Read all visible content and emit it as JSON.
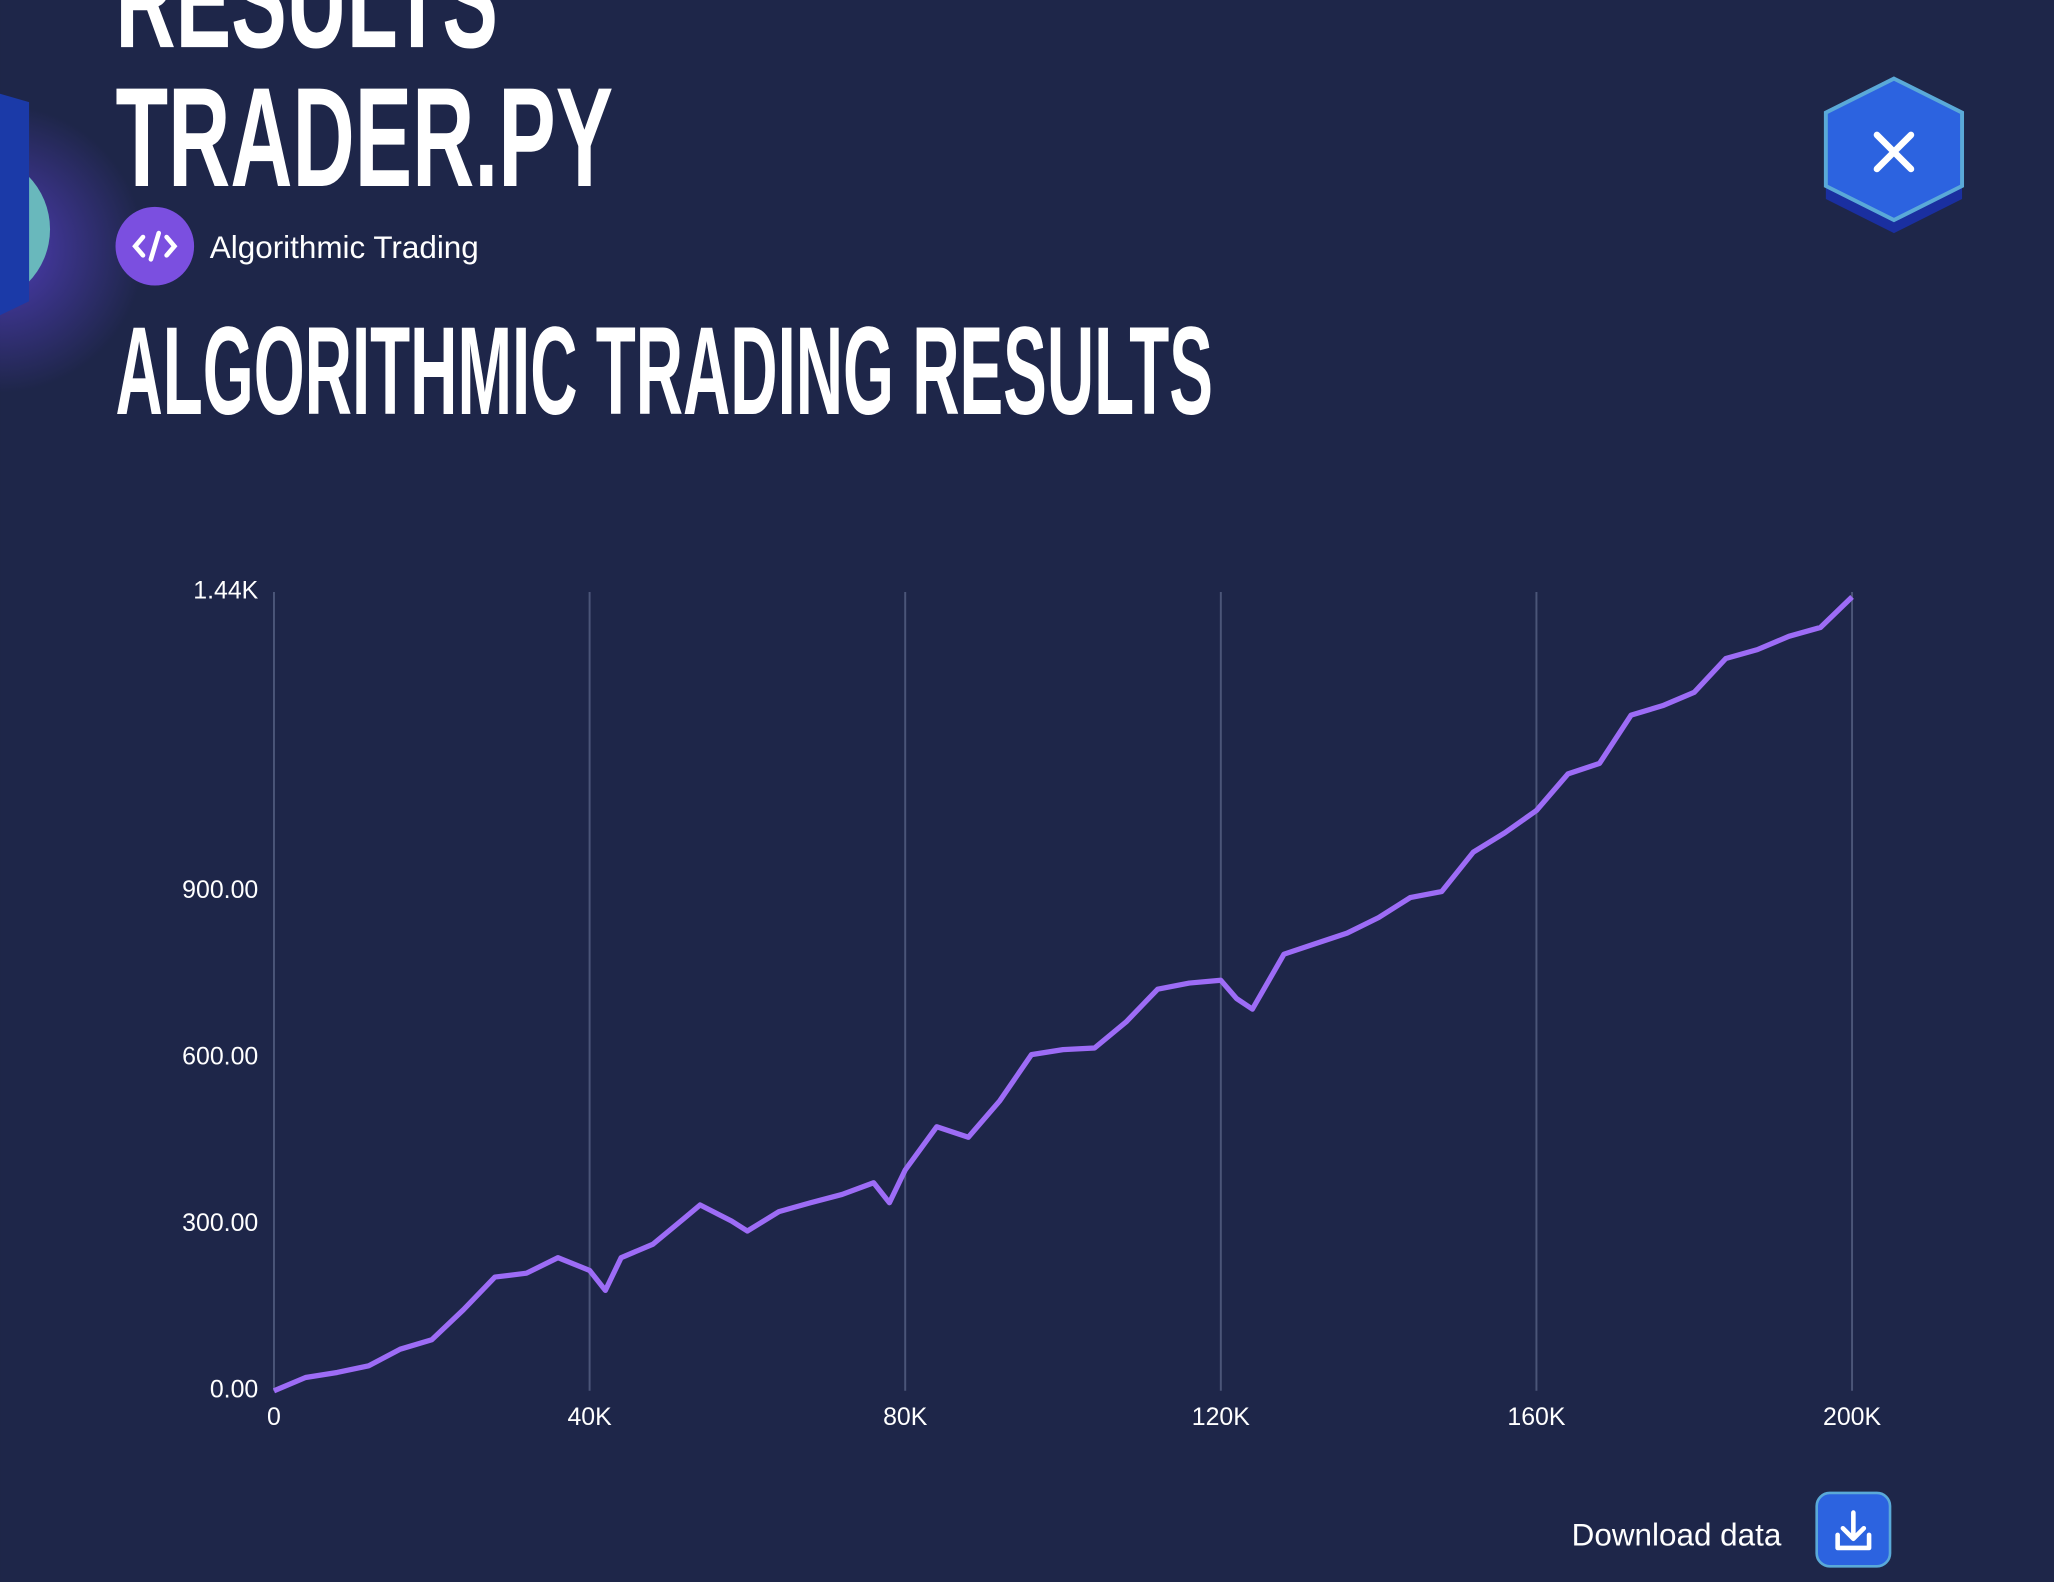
{
  "header": {
    "overtitle": "RESULTS",
    "title": "TRADER.PY",
    "tag": "Algorithmic Trading"
  },
  "chart_data": {
    "type": "line",
    "title": "ALGORITHMIC TRADING RESULTS",
    "x": [
      0,
      4000,
      8000,
      12000,
      16000,
      20000,
      24000,
      28000,
      32000,
      36000,
      40000,
      42000,
      44000,
      48000,
      52000,
      54000,
      58000,
      60000,
      64000,
      68000,
      72000,
      76000,
      78000,
      80000,
      84000,
      88000,
      92000,
      96000,
      100000,
      104000,
      108000,
      112000,
      116000,
      120000,
      122000,
      124000,
      128000,
      132000,
      136000,
      140000,
      144000,
      148000,
      152000,
      156000,
      160000,
      164000,
      168000,
      172000,
      176000,
      180000,
      184000,
      188000,
      192000,
      196000,
      200000
    ],
    "values": [
      0,
      24,
      33,
      45,
      75,
      92,
      146,
      205,
      212,
      240,
      217,
      181,
      240,
      264,
      311,
      335,
      306,
      288,
      323,
      339,
      354,
      375,
      339,
      398,
      476,
      457,
      523,
      606,
      615,
      618,
      665,
      724,
      735,
      740,
      707,
      688,
      787,
      806,
      825,
      853,
      889,
      900,
      971,
      1006,
      1046,
      1112,
      1131,
      1218,
      1235,
      1259,
      1320,
      1336,
      1360,
      1376,
      1431
    ],
    "color": "#9d6cf6",
    "xlim": [
      0,
      200000
    ],
    "xticks": [
      0,
      {
        "value": 40000,
        "label": "40K"
      },
      {
        "value": 80000,
        "label": "80K"
      },
      {
        "value": 120000,
        "label": "120K"
      },
      {
        "value": 160000,
        "label": "160K"
      },
      {
        "value": 200000,
        "label": "200K"
      }
    ],
    "ylim": [
      0,
      1440
    ],
    "yticks": [
      {
        "value": 0,
        "label": "0.00"
      },
      {
        "value": 300,
        "label": "300.00"
      },
      {
        "value": 600,
        "label": "600.00"
      },
      {
        "value": 900,
        "label": "900.00"
      },
      {
        "value": 1440,
        "label": "1.44K"
      }
    ],
    "grid": "x"
  },
  "footer": {
    "download": "Download data"
  }
}
